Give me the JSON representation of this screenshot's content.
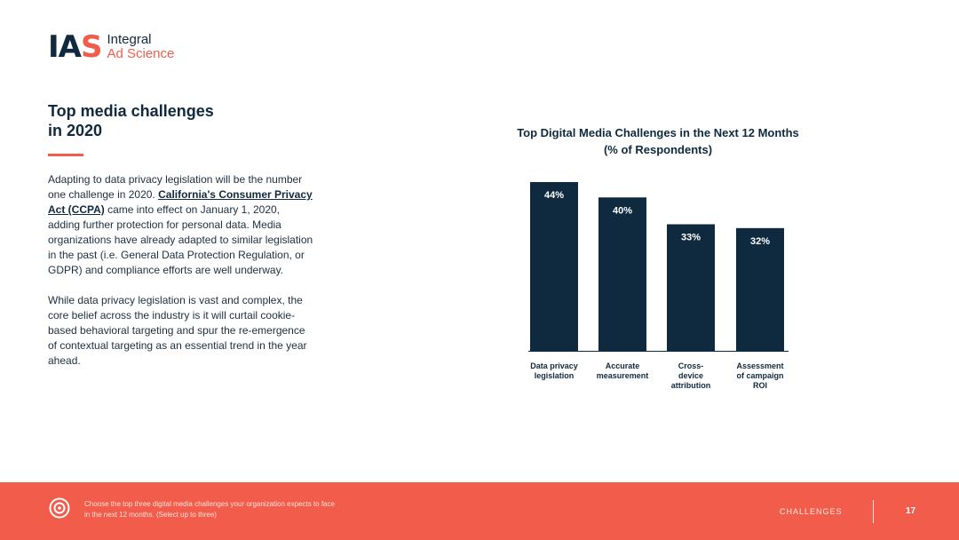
{
  "logo": {
    "mark_a": "IA",
    "mark_b": "S",
    "line1": "Integral",
    "line2": "Ad Science"
  },
  "heading": {
    "title_line1": "Top media challenges",
    "title_line2": "in 2020"
  },
  "body": {
    "p1_before": "Adapting to data privacy legislation will be the number one challenge in 2020. ",
    "p1_link": "California's Consumer Privacy Act (CCPA)",
    "p1_after": " came into effect on January 1, 2020, adding further protection for personal data. Media organizations have already adapted to similar legislation in the past (i.e. General Data Protection Regulation, or GDPR) and compliance efforts are well underway.",
    "p2": "While data privacy legislation is vast and complex, the core belief across the industry is it will curtail cookie-based behavioral targeting and spur the re-emergence of contextual targeting as an essential trend in the year ahead."
  },
  "chart_data": {
    "type": "bar",
    "title": "Top Digital Media Challenges in the Next 12 Months",
    "subtitle": "(% of Respondents)",
    "categories": [
      [
        "Data privacy",
        "legislation"
      ],
      [
        "Accurate",
        "measurement"
      ],
      [
        "Cross-",
        "device",
        "attribution"
      ],
      [
        "Assessment",
        "of campaign",
        "ROI"
      ]
    ],
    "values": [
      44,
      40,
      33,
      32
    ],
    "value_labels": [
      "44%",
      "40%",
      "33%",
      "32%"
    ],
    "ylim": [
      0,
      44
    ],
    "grid": false,
    "bar_color": "#0f2a3e"
  },
  "footer": {
    "note": "Choose the top three digital media challenges your organization expects to face in the next 12 months. (Select up to three)",
    "section": "CHALLENGES",
    "page": "17",
    "icon": "target-icon"
  },
  "colors": {
    "navy": "#0f2a3e",
    "coral": "#f25c4a"
  }
}
